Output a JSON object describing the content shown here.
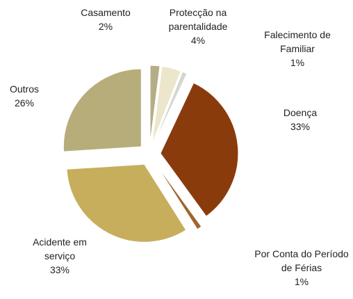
{
  "chart_data": {
    "type": "pie",
    "categories": [
      "Casamento",
      "Protecção na parentalidade",
      "Falecimento de Familiar",
      "Doença",
      "Por Conta do Período de Férias",
      "Acidente em serviço",
      "Outros"
    ],
    "values": [
      2,
      4,
      1,
      33,
      1,
      33,
      26
    ],
    "value_labels": [
      "2%",
      "4%",
      "1%",
      "33%",
      "1%",
      "33%",
      "26%"
    ],
    "colors": [
      "#b5ad86",
      "#ebe6cc",
      "#d6d6d0",
      "#8a3b0c",
      "#a3642c",
      "#c6ae5c",
      "#b7ad7a"
    ]
  }
}
